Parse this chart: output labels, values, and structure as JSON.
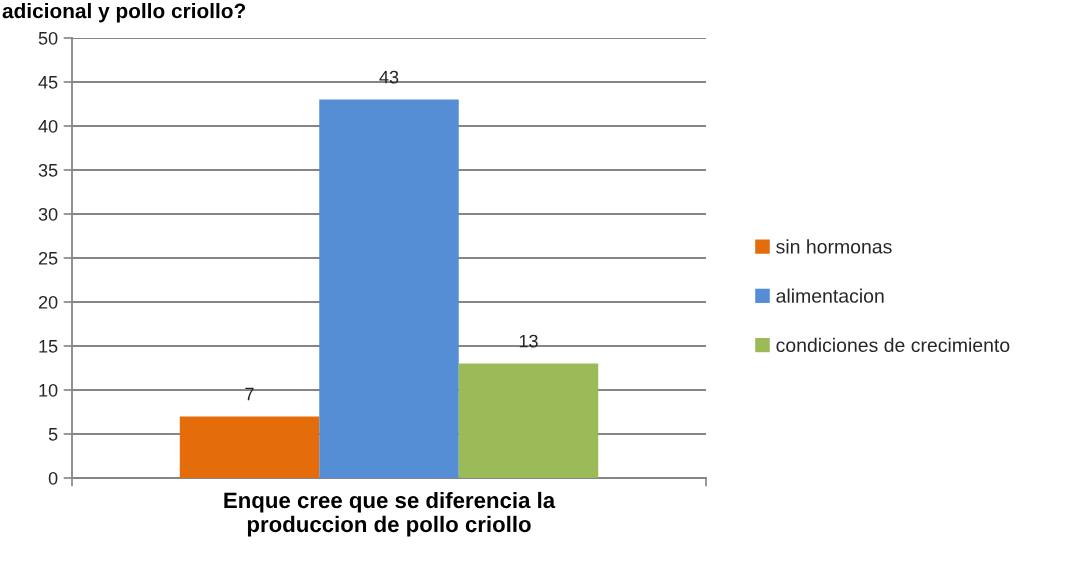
{
  "chart_data": {
    "type": "bar",
    "title": "adicional y pollo criollo?",
    "categories": [
      "Enque cree que se diferencia la\nproduccion de pollo criollo"
    ],
    "series": [
      {
        "name": "sin hormonas",
        "color": "#e46c0a",
        "values": [
          7
        ]
      },
      {
        "name": "alimentacion",
        "color": "#558ed5",
        "values": [
          43
        ]
      },
      {
        "name": "condiciones de crecimiento",
        "color": "#9bbb59",
        "values": [
          13
        ]
      }
    ],
    "ylim": [
      0,
      50
    ],
    "yticks": [
      0,
      5,
      10,
      15,
      20,
      25,
      30,
      35,
      40,
      45,
      50
    ],
    "grid": "y",
    "legend": "right",
    "data_labels": true
  }
}
